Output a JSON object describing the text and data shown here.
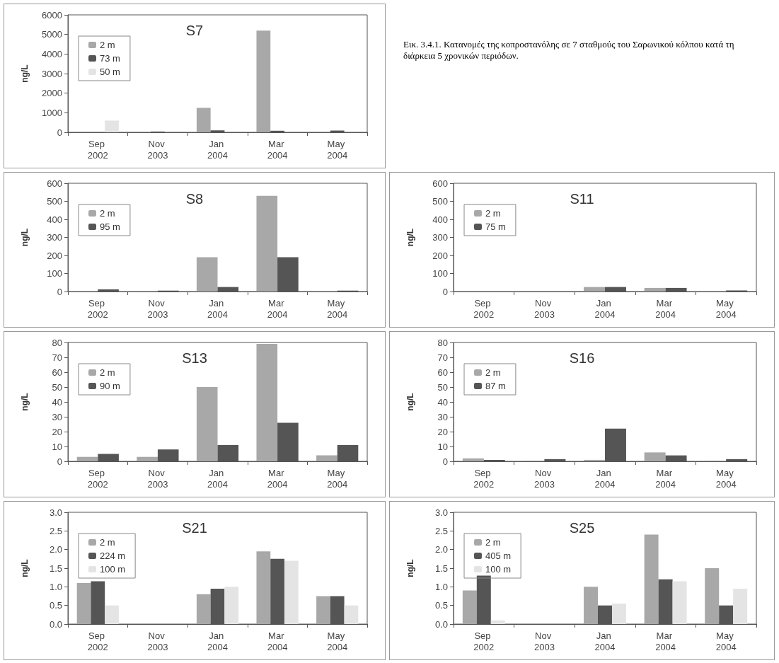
{
  "chart_data": [
    {
      "type": "bar",
      "title": "S7",
      "ylabel": "ng/L",
      "categories": [
        "Sep 2002",
        "Nov 2003",
        "Jan 2004",
        "Mar 2004",
        "May 2004"
      ],
      "ylim": [
        0,
        6000
      ],
      "yticks": [
        0,
        1000,
        2000,
        3000,
        4000,
        5000,
        6000
      ],
      "grid": false,
      "legend": "top left",
      "series": [
        {
          "name": "2 m",
          "color": "#a8a8a8",
          "values": [
            null,
            null,
            1250,
            5200,
            null
          ]
        },
        {
          "name": "73 m",
          "color": "#555555",
          "values": [
            null,
            40,
            100,
            80,
            90
          ]
        },
        {
          "name": "50 m",
          "color": "#e4e4e4",
          "values": [
            600,
            null,
            null,
            null,
            null
          ]
        }
      ]
    },
    {
      "type": "other",
      "title": "Εικ. 3.4.1. Κατανομές της κοπροστανόλης σε 7 σταθμούς του Σαρωνικού κόλπου κατά τη διάρκεια 5 χρονικών περιόδων."
    },
    {
      "type": "bar",
      "title": "S8",
      "ylabel": "ng/L",
      "categories": [
        "Sep 2002",
        "Nov 2003",
        "Jan 2004",
        "Mar 2004",
        "May 2004"
      ],
      "ylim": [
        0,
        600
      ],
      "yticks": [
        0,
        100,
        200,
        300,
        400,
        500,
        600
      ],
      "grid": false,
      "legend": "top left",
      "series": [
        {
          "name": "2 m",
          "color": "#a8a8a8",
          "values": [
            2,
            2,
            190,
            530,
            null
          ]
        },
        {
          "name": "95 m",
          "color": "#555555",
          "values": [
            12,
            5,
            25,
            190,
            5
          ]
        }
      ]
    },
    {
      "type": "bar",
      "title": "S11",
      "ylabel": "ng/L",
      "categories": [
        "Sep 2002",
        "Nov 2003",
        "Jan 2004",
        "Mar 2004",
        "May 2004"
      ],
      "ylim": [
        0,
        600
      ],
      "yticks": [
        0,
        100,
        200,
        300,
        400,
        500,
        600
      ],
      "grid": false,
      "legend": "top left",
      "series": [
        {
          "name": "2 m",
          "color": "#a8a8a8",
          "values": [
            3,
            2,
            25,
            20,
            3
          ]
        },
        {
          "name": "75 m",
          "color": "#555555",
          "values": [
            null,
            null,
            25,
            20,
            6
          ]
        }
      ]
    },
    {
      "type": "bar",
      "title": "S13",
      "ylabel": "ng/L",
      "categories": [
        "Sep 2002",
        "Nov 2003",
        "Jan 2004",
        "Mar 2004",
        "May 2004"
      ],
      "ylim": [
        0,
        80
      ],
      "yticks": [
        0,
        10,
        20,
        30,
        40,
        50,
        60,
        70,
        80
      ],
      "grid": false,
      "legend": "top left",
      "series": [
        {
          "name": "2 m",
          "color": "#a8a8a8",
          "values": [
            3,
            3,
            50,
            79,
            4
          ]
        },
        {
          "name": "90 m",
          "color": "#555555",
          "values": [
            5,
            8,
            11,
            26,
            11
          ]
        }
      ]
    },
    {
      "type": "bar",
      "title": "S16",
      "ylabel": "ng/L",
      "categories": [
        "Sep 2002",
        "Nov 2003",
        "Jan 2004",
        "Mar 2004",
        "May 2004"
      ],
      "ylim": [
        0,
        80
      ],
      "yticks": [
        0,
        10,
        20,
        30,
        40,
        50,
        60,
        70,
        80
      ],
      "grid": false,
      "legend": "top left",
      "series": [
        {
          "name": "2 m",
          "color": "#a8a8a8",
          "values": [
            2,
            0.5,
            1,
            6,
            0.5
          ]
        },
        {
          "name": "87 m",
          "color": "#555555",
          "values": [
            1,
            1.5,
            22,
            4,
            1.5
          ]
        }
      ]
    },
    {
      "type": "bar",
      "title": "S21",
      "ylabel": "ng/L",
      "categories": [
        "Sep 2002",
        "Nov 2003",
        "Jan 2004",
        "Mar 2004",
        "May 2004"
      ],
      "ylim": [
        0,
        3
      ],
      "yticks": [
        {
          "value": 0,
          "label": "0.0"
        },
        0.5,
        {
          "value": 1,
          "label": "1.0"
        },
        1.5,
        {
          "value": 2,
          "label": "2.0"
        },
        2.5,
        {
          "value": 3,
          "label": "3.0"
        }
      ],
      "grid": false,
      "legend": "top left",
      "series": [
        {
          "name": "2 m",
          "color": "#a8a8a8",
          "values": [
            1.1,
            null,
            0.8,
            1.95,
            0.75
          ]
        },
        {
          "name": "224 m",
          "color": "#555555",
          "values": [
            1.15,
            null,
            0.95,
            1.75,
            0.75
          ]
        },
        {
          "name": "100 m",
          "color": "#e4e4e4",
          "values": [
            0.5,
            null,
            1.0,
            1.7,
            0.5
          ]
        }
      ]
    },
    {
      "type": "bar",
      "title": "S25",
      "ylabel": "ng/L",
      "categories": [
        "Sep 2002",
        "Nov 2003",
        "Jan 2004",
        "Mar 2004",
        "May 2004"
      ],
      "ylim": [
        0,
        3
      ],
      "yticks": [
        {
          "value": 0,
          "label": "0.0"
        },
        0.5,
        {
          "value": 1,
          "label": "1.0"
        },
        1.5,
        {
          "value": 2,
          "label": "2.0"
        },
        2.5,
        {
          "value": 3,
          "label": "3.0"
        }
      ],
      "grid": false,
      "legend": "top left",
      "series": [
        {
          "name": "2 m",
          "color": "#a8a8a8",
          "values": [
            0.9,
            null,
            1.0,
            2.4,
            1.5
          ]
        },
        {
          "name": "405 m",
          "color": "#555555",
          "values": [
            1.3,
            null,
            0.5,
            1.2,
            0.5
          ]
        },
        {
          "name": "100 m",
          "color": "#e4e4e4",
          "values": [
            0.1,
            null,
            0.55,
            1.15,
            0.95
          ]
        }
      ]
    }
  ]
}
